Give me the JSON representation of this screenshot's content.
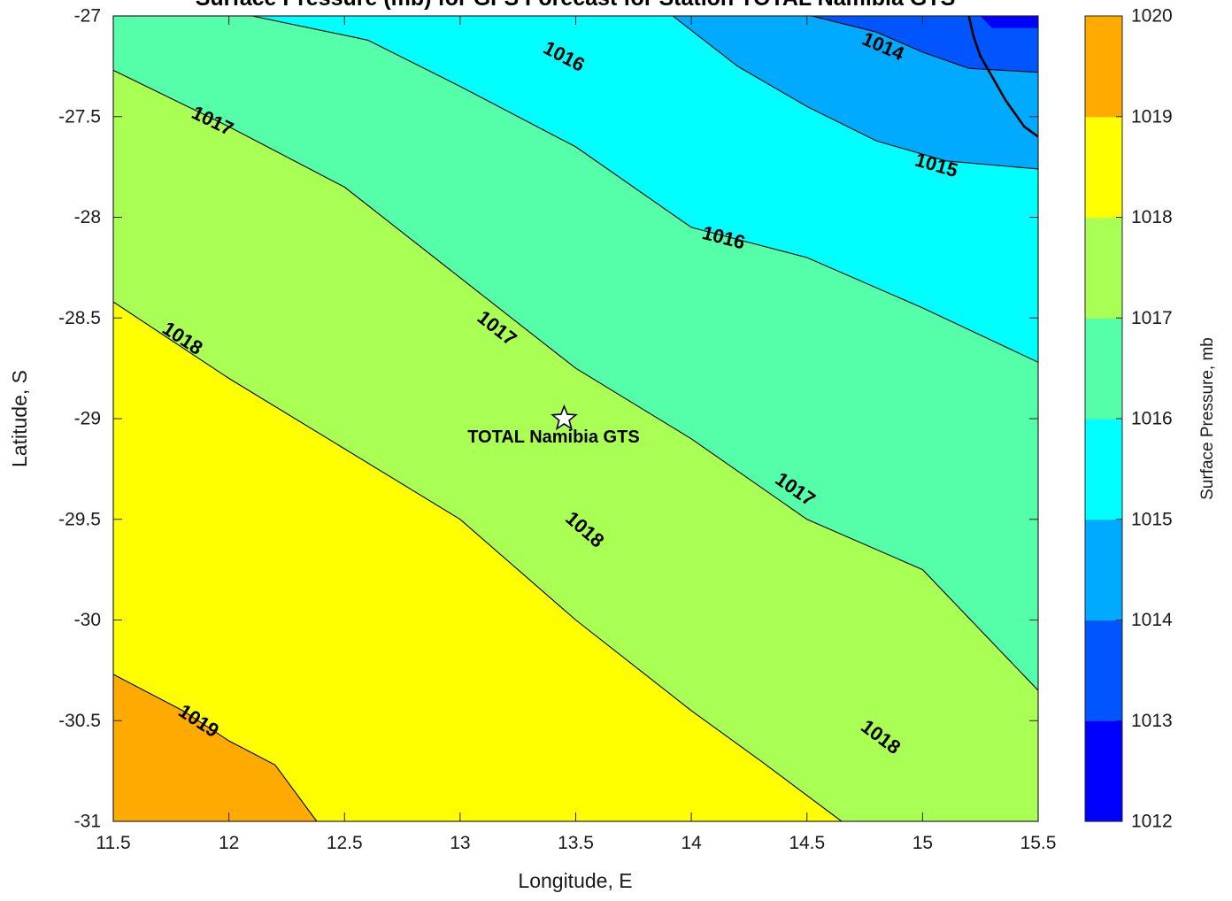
{
  "title": "Surface Pressure (mb) for GFS Forecast for Station TOTAL Namibia GTS",
  "chart_data": {
    "type": "contourf",
    "xlabel": "Longitude, E",
    "ylabel": "Latitude, S",
    "xlim": [
      11.5,
      15.5
    ],
    "ylim": [
      -31,
      -27
    ],
    "xticks": [
      "11.5",
      "12",
      "12.5",
      "13",
      "13.5",
      "14",
      "14.5",
      "15",
      "15.5"
    ],
    "yticks": [
      "-27",
      "-27.5",
      "-28",
      "-28.5",
      "-29",
      "-29.5",
      "-30",
      "-30.5",
      "-31"
    ],
    "levels": [
      1012,
      1013,
      1014,
      1015,
      1016,
      1017,
      1018,
      1019,
      1020
    ],
    "colormap": [
      "#0000ff",
      "#0055ff",
      "#00aaff",
      "#00ffff",
      "#55ffaa",
      "#aaff55",
      "#ffff00",
      "#ffaa00",
      "#ff5500"
    ],
    "colorbar": {
      "label": "Surface Pressure, mb",
      "ticks": [
        "1012",
        "1013",
        "1014",
        "1015",
        "1016",
        "1017",
        "1018",
        "1019",
        "1020"
      ]
    },
    "contours": [
      {
        "level": 1014,
        "points": [
          [
            14.52,
            -27
          ],
          [
            14.8,
            -27.08
          ],
          [
            15.0,
            -27.18
          ],
          [
            15.2,
            -27.26
          ],
          [
            15.5,
            -27.28
          ]
        ]
      },
      {
        "level": 1015,
        "points": [
          [
            13.92,
            -27
          ],
          [
            14.2,
            -27.25
          ],
          [
            14.5,
            -27.45
          ],
          [
            14.8,
            -27.62
          ],
          [
            15.1,
            -27.72
          ],
          [
            15.5,
            -27.76
          ]
        ]
      },
      {
        "level": 1016,
        "points": [
          [
            12.1,
            -27
          ],
          [
            12.6,
            -27.12
          ],
          [
            13.0,
            -27.35
          ],
          [
            13.5,
            -27.65
          ],
          [
            14.0,
            -28.05
          ],
          [
            14.5,
            -28.2
          ],
          [
            15.0,
            -28.45
          ],
          [
            15.5,
            -28.72
          ]
        ]
      },
      {
        "level": 1017,
        "points": [
          [
            11.5,
            -27.27
          ],
          [
            12.0,
            -27.55
          ],
          [
            12.5,
            -27.85
          ],
          [
            13.0,
            -28.3
          ],
          [
            13.5,
            -28.75
          ],
          [
            14.0,
            -29.1
          ],
          [
            14.5,
            -29.5
          ],
          [
            15.0,
            -29.75
          ],
          [
            15.5,
            -30.35
          ]
        ]
      },
      {
        "level": 1018,
        "points": [
          [
            11.5,
            -28.42
          ],
          [
            12.0,
            -28.8
          ],
          [
            12.5,
            -29.15
          ],
          [
            13.0,
            -29.5
          ],
          [
            13.5,
            -30.0
          ],
          [
            14.0,
            -30.45
          ],
          [
            14.3,
            -30.7
          ],
          [
            14.65,
            -31.0
          ]
        ]
      },
      {
        "level": 1019,
        "points": [
          [
            11.5,
            -30.27
          ],
          [
            11.8,
            -30.45
          ],
          [
            12.0,
            -30.6
          ],
          [
            12.2,
            -30.72
          ],
          [
            12.38,
            -31.0
          ]
        ]
      }
    ],
    "contour_labels": [
      {
        "text": "1014",
        "x": 14.83,
        "y": -27.15
      },
      {
        "text": "1015",
        "x": 15.06,
        "y": -27.74
      },
      {
        "text": "1016",
        "x": 13.45,
        "y": -27.2
      },
      {
        "text": "1016",
        "x": 14.14,
        "y": -28.1
      },
      {
        "text": "1017",
        "x": 11.93,
        "y": -27.52
      },
      {
        "text": "1017",
        "x": 13.16,
        "y": -28.55
      },
      {
        "text": "1017",
        "x": 14.45,
        "y": -29.35
      },
      {
        "text": "1018",
        "x": 11.8,
        "y": -28.6
      },
      {
        "text": "1018",
        "x": 13.54,
        "y": -29.55
      },
      {
        "text": "1018",
        "x": 14.82,
        "y": -30.58
      },
      {
        "text": "1019",
        "x": 11.87,
        "y": -30.5
      }
    ],
    "coastline": [
      [
        15.2,
        -27
      ],
      [
        15.22,
        -27.1
      ],
      [
        15.25,
        -27.2
      ],
      [
        15.3,
        -27.3
      ],
      [
        15.36,
        -27.42
      ],
      [
        15.44,
        -27.55
      ],
      [
        15.5,
        -27.6
      ]
    ],
    "station": {
      "name": "TOTAL Namibia GTS",
      "lon": 13.45,
      "lat": -29.0
    }
  }
}
